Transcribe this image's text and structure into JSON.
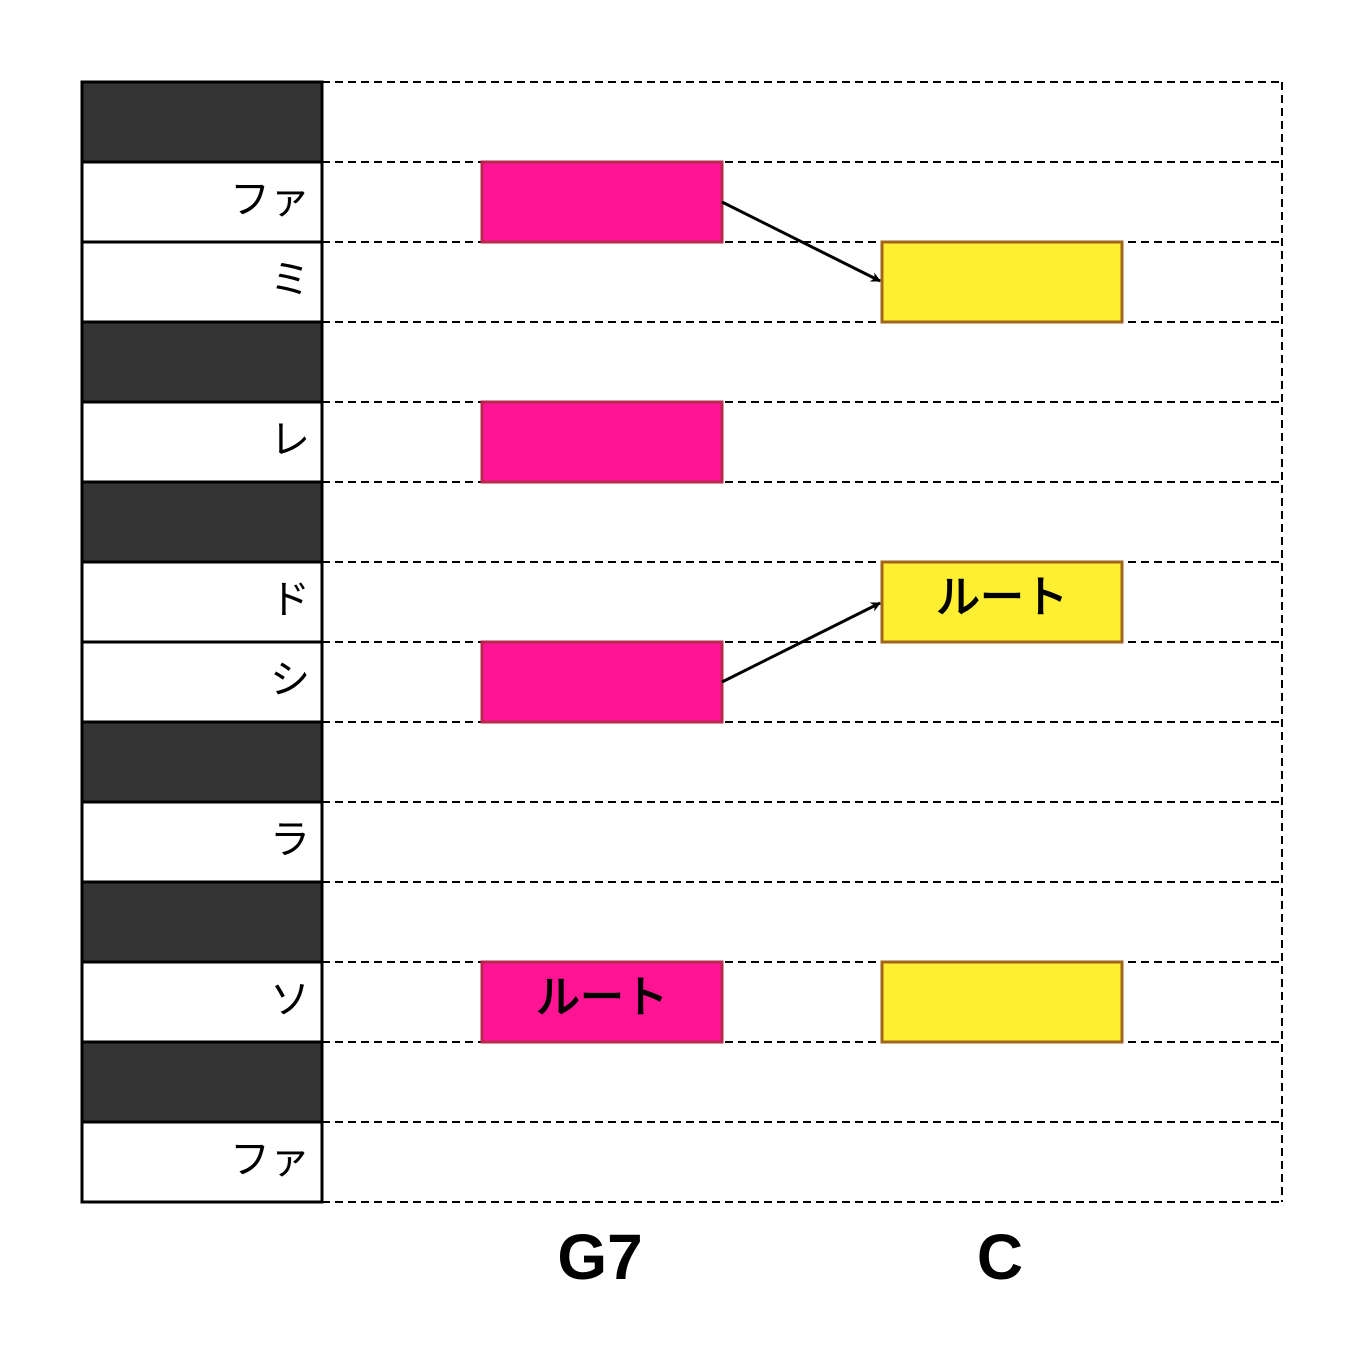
{
  "keys": [
    "ファ",
    "ミ",
    "レ",
    "ド",
    "シ",
    "ラ",
    "ソ",
    "ファ"
  ],
  "chords": [
    {
      "name": "G7",
      "root_label": "ルート"
    },
    {
      "name": "C",
      "root_label": "ルート"
    }
  ]
}
